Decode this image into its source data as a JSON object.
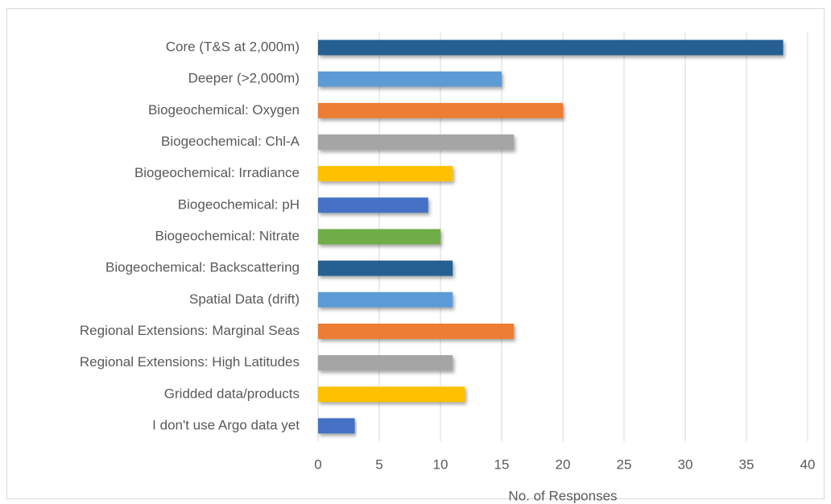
{
  "chart_data": {
    "type": "bar",
    "orientation": "horizontal",
    "x_label": "No. of Responses",
    "categories": [
      "Core (T&S at 2,000m)",
      "Deeper (>2,000m)",
      "Biogeochemical: Oxygen",
      "Biogeochemical: Chl-A",
      "Biogeochemical: Irradiance",
      "Biogeochemical: pH",
      "Biogeochemical: Nitrate",
      "Biogeochemical: Backscattering",
      "Spatial Data (drift)",
      "Regional Extensions: Marginal Seas",
      "Regional Extensions: High Latitudes",
      "Gridded data/products",
      "I don't use Argo data yet"
    ],
    "values": [
      38,
      15,
      20,
      16,
      11,
      9,
      10,
      11,
      11,
      16,
      11,
      12,
      3
    ],
    "colors": [
      "#255e91",
      "#5b9bd5",
      "#ed7d31",
      "#a5a5a5",
      "#ffc000",
      "#4472c4",
      "#70ad47",
      "#255e91",
      "#5b9bd5",
      "#ed7d31",
      "#a5a5a5",
      "#ffc000",
      "#4472c4"
    ],
    "xlim": [
      0,
      40
    ],
    "xticks": [
      0,
      5,
      10,
      15,
      20,
      25,
      30,
      35,
      40
    ],
    "grid": true
  }
}
